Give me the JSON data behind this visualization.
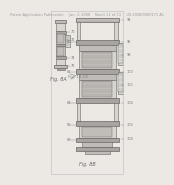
{
  "background_color": "#ece9e4",
  "header_text": "Patent Application Publication     Jan. 3, 2008    Sheet 11 of 13     US 2008/0000171 A1",
  "header_fontsize": 2.5,
  "fig8a_label": "Fig. 8A",
  "fig8b_label": "Fig. 8B",
  "line_color": "#888888",
  "dark_color": "#666666",
  "light_fill": "#d8d4ce",
  "mid_fill": "#c0bdb8",
  "dark_fill": "#a8a5a0"
}
